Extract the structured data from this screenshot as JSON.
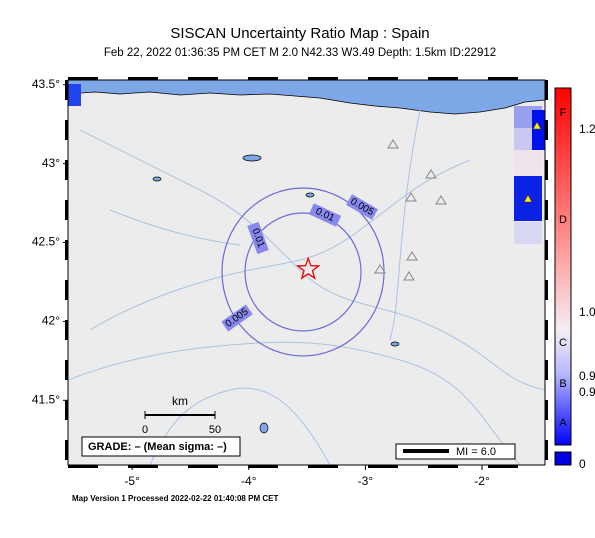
{
  "header": {
    "title": "SISCAN Uncertainty Ratio Map : Spain",
    "subtitle": "Feb 22, 2022 01:36:35 PM CET   M 2.0   N42.33 W3.49   Depth: 1.5km   ID:22912"
  },
  "map": {
    "lonlim": [
      -5.55,
      -1.46
    ],
    "latlim": [
      41.09,
      43.53
    ],
    "lon_ticks": [
      {
        "value": -5,
        "label": "-5°"
      },
      {
        "value": -4,
        "label": "-4°"
      },
      {
        "value": -3,
        "label": "-3°"
      },
      {
        "value": -2,
        "label": "-2°"
      }
    ],
    "lat_ticks": [
      {
        "value": 43.5,
        "label": "43.5°"
      },
      {
        "value": 43,
        "label": "43°"
      },
      {
        "value": 42.5,
        "label": "42.5°"
      },
      {
        "value": 42,
        "label": "42°"
      },
      {
        "value": 41.5,
        "label": "41.5°"
      }
    ],
    "epicenter": {
      "lon": -3.49,
      "lat": 42.33
    },
    "contour_labels": [
      "0.005",
      "0.01",
      "0.01",
      "0.005"
    ]
  },
  "scale": {
    "unit": "km",
    "labels": [
      "0",
      "50"
    ]
  },
  "legend": {
    "grade": "GRADE: – (Mean sigma: –)",
    "mi": "MI = 6.0"
  },
  "colorbar": {
    "grades": [
      "F",
      "D",
      "C",
      "B",
      "A"
    ],
    "values": [
      "1.2",
      "1.0",
      "0.9",
      "0.9",
      "0"
    ]
  },
  "footer": "Map Version 1 Processed 2022-02-22 01:40:08 PM CET"
}
